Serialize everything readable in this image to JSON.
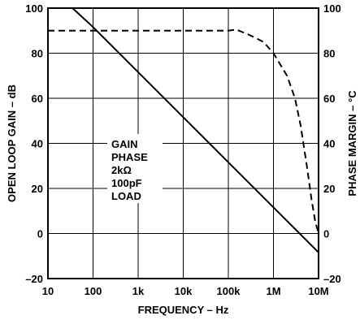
{
  "chart_data": {
    "type": "line",
    "xlabel": "FREQUENCY – Hz",
    "ylabel_left": "OPEN LOOP GAIN – dB",
    "ylabel_right": "PHASE MARGIN – °C",
    "x_scale": "log",
    "xlim": [
      10,
      10000000
    ],
    "ylim": [
      -20,
      100
    ],
    "y2lim": [
      -20,
      100
    ],
    "x_ticks": [
      {
        "value": 10,
        "label": "10"
      },
      {
        "value": 100,
        "label": "100"
      },
      {
        "value": 1000,
        "label": "1k"
      },
      {
        "value": 10000,
        "label": "10k"
      },
      {
        "value": 100000,
        "label": "100k"
      },
      {
        "value": 1000000,
        "label": "1M"
      },
      {
        "value": 10000000,
        "label": "10M"
      }
    ],
    "y_ticks": [
      {
        "value": 100,
        "label": "100"
      },
      {
        "value": 80,
        "label": "80"
      },
      {
        "value": 60,
        "label": "60"
      },
      {
        "value": 40,
        "label": "40"
      },
      {
        "value": 20,
        "label": "20"
      },
      {
        "value": 0,
        "label": "0"
      },
      {
        "value": -20,
        "label": "–20"
      }
    ],
    "y2_ticks": [
      {
        "value": 100,
        "label": "100"
      },
      {
        "value": 80,
        "label": "80"
      },
      {
        "value": 60,
        "label": "60"
      },
      {
        "value": 40,
        "label": "40"
      },
      {
        "value": 20,
        "label": "20"
      },
      {
        "value": 0,
        "label": "0"
      },
      {
        "value": -20,
        "label": "–20"
      }
    ],
    "grid": true,
    "series": [
      {
        "style": "solid",
        "axis": "left",
        "x": [
          35,
          100,
          1000,
          10000,
          100000,
          1000000,
          10000000
        ],
        "y": [
          100,
          91.6,
          71.6,
          51.6,
          31.6,
          11.6,
          -8.4
        ]
      },
      {
        "style": "dashed",
        "axis": "right",
        "x": [
          10,
          100,
          1000,
          10000,
          100000,
          150000,
          300000,
          600000,
          1000000,
          2000000,
          3000000,
          4000000,
          5500000,
          7000000,
          8500000,
          10000000
        ],
        "y": [
          90,
          90,
          90,
          90,
          90,
          90.5,
          88,
          85,
          80,
          70,
          60,
          48,
          30,
          15,
          5,
          0
        ]
      }
    ],
    "annotation": {
      "lines": [
        "GAIN",
        "PHASE",
        "2kΩ",
        "100pF",
        "LOAD"
      ]
    }
  }
}
